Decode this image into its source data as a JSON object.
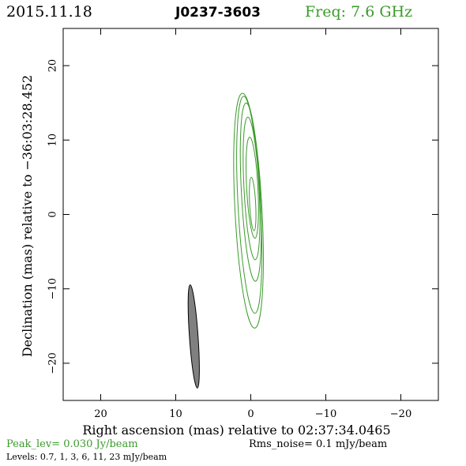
{
  "header": {
    "date": "2015.11.18",
    "source": "J0237-3603",
    "frequency": "Freq: 7.6 GHz"
  },
  "footer": {
    "peak": "Peak_lev=  0.030 Jy/beam",
    "rms": "Rms_noise=   0.1 mJy/beam",
    "levels": "Levels: 0.7,    1,    3,    6,   11,   23  mJy/beam"
  },
  "colors": {
    "contour": "#3a9b2a",
    "header_freq": "#3a9b2a",
    "peak_text": "#3a9b2a",
    "beam_fill": "#808080",
    "axes": "#000000"
  },
  "chart_data": {
    "type": "contour",
    "xlabel": "Right ascension (mas) relative to 02:37:34.0465",
    "ylabel": "Declination (mas) relative to −36:03:28.452",
    "xlim": [
      25,
      -25
    ],
    "ylim": [
      -25,
      25
    ],
    "x_ticks": [
      20,
      10,
      0,
      -10,
      -20
    ],
    "x_tick_labels": [
      "20",
      "10",
      "0",
      "−10",
      "−20"
    ],
    "y_ticks": [
      20,
      10,
      0,
      -10,
      -20
    ],
    "y_tick_labels": [
      "20",
      "10",
      "0",
      "−10",
      "−20"
    ],
    "grid": false,
    "contour_levels_mJy": [
      0.7,
      1,
      3,
      6,
      11,
      23
    ],
    "contours": [
      {
        "level": 0.7,
        "cx": 0.3,
        "cy": 0.5,
        "rx": 1.8,
        "ry": 15.8,
        "tilt_deg": -3
      },
      {
        "level": 1,
        "cx": 0.2,
        "cy": 1.3,
        "rx": 1.5,
        "ry": 14.6,
        "tilt_deg": -3
      },
      {
        "level": 3,
        "cx": 0.0,
        "cy": 3.0,
        "rx": 1.25,
        "ry": 12.0,
        "tilt_deg": -3
      },
      {
        "level": 6,
        "cx": -0.1,
        "cy": 3.5,
        "rx": 1.0,
        "ry": 9.6,
        "tilt_deg": -3
      },
      {
        "level": 11,
        "cx": -0.2,
        "cy": 3.6,
        "rx": 0.75,
        "ry": 6.8,
        "tilt_deg": -3
      },
      {
        "level": 23,
        "cx": -0.25,
        "cy": 1.4,
        "rx": 0.4,
        "ry": 3.6,
        "tilt_deg": -3
      }
    ],
    "beam": {
      "cx": 7.6,
      "cy": -16.4,
      "major": 13.9,
      "minor": 1.15,
      "tilt_deg": -4
    }
  }
}
